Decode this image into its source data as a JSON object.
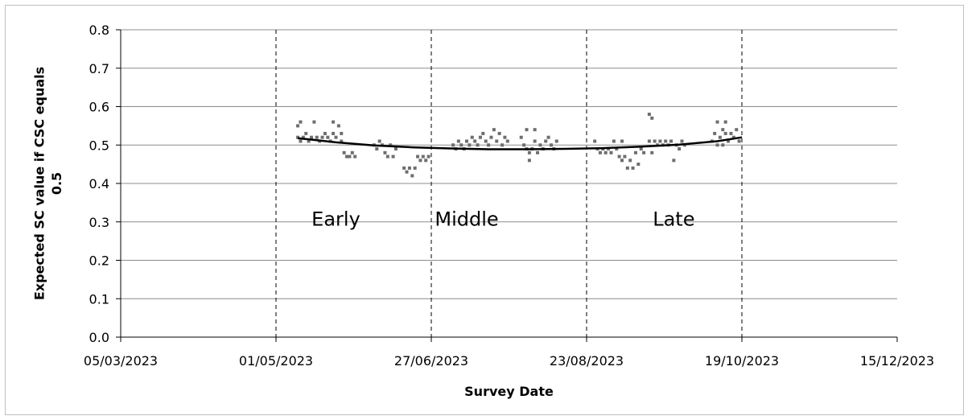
{
  "chart_data": {
    "type": "scatter",
    "title": "",
    "xlabel": "Survey Date",
    "ylabel": "Expected SC value if CSC equals 0.5",
    "xlim": [
      "05/03/2023",
      "15/12/2023"
    ],
    "ylim": [
      0.0,
      0.8
    ],
    "x_ticks": [
      "05/03/2023",
      "01/05/2023",
      "27/06/2023",
      "23/08/2023",
      "19/10/2023",
      "15/12/2023"
    ],
    "y_ticks": [
      "0.0",
      "0.1",
      "0.2",
      "0.3",
      "0.4",
      "0.5",
      "0.6",
      "0.7",
      "0.8"
    ],
    "grid": "horizontal",
    "period_boundaries": [
      "01/05/2023",
      "27/06/2023",
      "23/08/2023",
      "19/10/2023"
    ],
    "period_labels": [
      {
        "text": "Early",
        "date": "23/05/2023",
        "y": 0.29
      },
      {
        "text": "Middle",
        "date": "10/07/2023",
        "y": 0.29
      },
      {
        "text": "Late",
        "date": "24/09/2023",
        "y": 0.29
      }
    ],
    "colors": {
      "points": "#6e6e6e",
      "trend": "#000000",
      "grid": "#8c8c8c"
    },
    "trend_line": {
      "name": "",
      "points": [
        {
          "date": "09/05/2023",
          "y": 0.518
        },
        {
          "date": "23/05/2023",
          "y": 0.507
        },
        {
          "date": "06/06/2023",
          "y": 0.499
        },
        {
          "date": "20/06/2023",
          "y": 0.494
        },
        {
          "date": "04/07/2023",
          "y": 0.491
        },
        {
          "date": "18/07/2023",
          "y": 0.489
        },
        {
          "date": "01/08/2023",
          "y": 0.489
        },
        {
          "date": "15/08/2023",
          "y": 0.49
        },
        {
          "date": "29/08/2023",
          "y": 0.492
        },
        {
          "date": "12/09/2023",
          "y": 0.496
        },
        {
          "date": "26/09/2023",
          "y": 0.501
        },
        {
          "date": "10/10/2023",
          "y": 0.51
        },
        {
          "date": "19/10/2023",
          "y": 0.52
        }
      ]
    },
    "points": [
      {
        "date": "09/05/2023",
        "y": 0.52
      },
      {
        "date": "09/05/2023",
        "y": 0.55
      },
      {
        "date": "10/05/2023",
        "y": 0.51
      },
      {
        "date": "10/05/2023",
        "y": 0.56
      },
      {
        "date": "11/05/2023",
        "y": 0.52
      },
      {
        "date": "12/05/2023",
        "y": 0.53
      },
      {
        "date": "13/05/2023",
        "y": 0.51
      },
      {
        "date": "14/05/2023",
        "y": 0.52
      },
      {
        "date": "15/05/2023",
        "y": 0.56
      },
      {
        "date": "16/05/2023",
        "y": 0.52
      },
      {
        "date": "17/05/2023",
        "y": 0.51
      },
      {
        "date": "18/05/2023",
        "y": 0.52
      },
      {
        "date": "19/05/2023",
        "y": 0.53
      },
      {
        "date": "20/05/2023",
        "y": 0.52
      },
      {
        "date": "21/05/2023",
        "y": 0.51
      },
      {
        "date": "22/05/2023",
        "y": 0.53
      },
      {
        "date": "22/05/2023",
        "y": 0.56
      },
      {
        "date": "23/05/2023",
        "y": 0.52
      },
      {
        "date": "24/05/2023",
        "y": 0.55
      },
      {
        "date": "25/05/2023",
        "y": 0.51
      },
      {
        "date": "25/05/2023",
        "y": 0.53
      },
      {
        "date": "26/05/2023",
        "y": 0.48
      },
      {
        "date": "27/05/2023",
        "y": 0.47
      },
      {
        "date": "28/05/2023",
        "y": 0.47
      },
      {
        "date": "29/05/2023",
        "y": 0.48
      },
      {
        "date": "30/05/2023",
        "y": 0.47
      },
      {
        "date": "06/06/2023",
        "y": 0.5
      },
      {
        "date": "07/06/2023",
        "y": 0.49
      },
      {
        "date": "08/06/2023",
        "y": 0.51
      },
      {
        "date": "09/06/2023",
        "y": 0.5
      },
      {
        "date": "10/06/2023",
        "y": 0.48
      },
      {
        "date": "11/06/2023",
        "y": 0.47
      },
      {
        "date": "12/06/2023",
        "y": 0.5
      },
      {
        "date": "13/06/2023",
        "y": 0.47
      },
      {
        "date": "14/06/2023",
        "y": 0.49
      },
      {
        "date": "17/06/2023",
        "y": 0.44
      },
      {
        "date": "18/06/2023",
        "y": 0.43
      },
      {
        "date": "19/06/2023",
        "y": 0.44
      },
      {
        "date": "20/06/2023",
        "y": 0.42
      },
      {
        "date": "21/06/2023",
        "y": 0.44
      },
      {
        "date": "22/06/2023",
        "y": 0.47
      },
      {
        "date": "23/06/2023",
        "y": 0.46
      },
      {
        "date": "24/06/2023",
        "y": 0.47
      },
      {
        "date": "25/06/2023",
        "y": 0.46
      },
      {
        "date": "26/06/2023",
        "y": 0.47
      },
      {
        "date": "05/07/2023",
        "y": 0.5
      },
      {
        "date": "06/07/2023",
        "y": 0.49
      },
      {
        "date": "07/07/2023",
        "y": 0.51
      },
      {
        "date": "08/07/2023",
        "y": 0.5
      },
      {
        "date": "09/07/2023",
        "y": 0.49
      },
      {
        "date": "10/07/2023",
        "y": 0.51
      },
      {
        "date": "11/07/2023",
        "y": 0.5
      },
      {
        "date": "12/07/2023",
        "y": 0.52
      },
      {
        "date": "13/07/2023",
        "y": 0.51
      },
      {
        "date": "14/07/2023",
        "y": 0.5
      },
      {
        "date": "15/07/2023",
        "y": 0.52
      },
      {
        "date": "16/07/2023",
        "y": 0.53
      },
      {
        "date": "17/07/2023",
        "y": 0.51
      },
      {
        "date": "18/07/2023",
        "y": 0.5
      },
      {
        "date": "19/07/2023",
        "y": 0.52
      },
      {
        "date": "20/07/2023",
        "y": 0.54
      },
      {
        "date": "21/07/2023",
        "y": 0.51
      },
      {
        "date": "22/07/2023",
        "y": 0.53
      },
      {
        "date": "23/07/2023",
        "y": 0.5
      },
      {
        "date": "24/07/2023",
        "y": 0.52
      },
      {
        "date": "25/07/2023",
        "y": 0.51
      },
      {
        "date": "30/07/2023",
        "y": 0.52
      },
      {
        "date": "31/07/2023",
        "y": 0.5
      },
      {
        "date": "01/08/2023",
        "y": 0.49
      },
      {
        "date": "01/08/2023",
        "y": 0.54
      },
      {
        "date": "02/08/2023",
        "y": 0.48
      },
      {
        "date": "02/08/2023",
        "y": 0.46
      },
      {
        "date": "03/08/2023",
        "y": 0.49
      },
      {
        "date": "04/08/2023",
        "y": 0.51
      },
      {
        "date": "04/08/2023",
        "y": 0.54
      },
      {
        "date": "05/08/2023",
        "y": 0.48
      },
      {
        "date": "06/08/2023",
        "y": 0.5
      },
      {
        "date": "07/08/2023",
        "y": 0.49
      },
      {
        "date": "08/08/2023",
        "y": 0.51
      },
      {
        "date": "09/08/2023",
        "y": 0.52
      },
      {
        "date": "10/08/2023",
        "y": 0.5
      },
      {
        "date": "11/08/2023",
        "y": 0.49
      },
      {
        "date": "12/08/2023",
        "y": 0.51
      },
      {
        "date": "26/08/2023",
        "y": 0.51
      },
      {
        "date": "27/08/2023",
        "y": 0.49
      },
      {
        "date": "28/08/2023",
        "y": 0.48
      },
      {
        "date": "29/08/2023",
        "y": 0.49
      },
      {
        "date": "30/08/2023",
        "y": 0.48
      },
      {
        "date": "31/08/2023",
        "y": 0.49
      },
      {
        "date": "01/09/2023",
        "y": 0.48
      },
      {
        "date": "02/09/2023",
        "y": 0.51
      },
      {
        "date": "03/09/2023",
        "y": 0.49
      },
      {
        "date": "04/09/2023",
        "y": 0.47
      },
      {
        "date": "05/09/2023",
        "y": 0.51
      },
      {
        "date": "05/09/2023",
        "y": 0.46
      },
      {
        "date": "06/09/2023",
        "y": 0.47
      },
      {
        "date": "07/09/2023",
        "y": 0.44
      },
      {
        "date": "08/09/2023",
        "y": 0.46
      },
      {
        "date": "09/09/2023",
        "y": 0.44
      },
      {
        "date": "10/09/2023",
        "y": 0.48
      },
      {
        "date": "11/09/2023",
        "y": 0.45
      },
      {
        "date": "12/09/2023",
        "y": 0.49
      },
      {
        "date": "13/09/2023",
        "y": 0.48
      },
      {
        "date": "15/09/2023",
        "y": 0.51
      },
      {
        "date": "15/09/2023",
        "y": 0.58
      },
      {
        "date": "16/09/2023",
        "y": 0.48
      },
      {
        "date": "16/09/2023",
        "y": 0.57
      },
      {
        "date": "17/09/2023",
        "y": 0.51
      },
      {
        "date": "18/09/2023",
        "y": 0.5
      },
      {
        "date": "19/09/2023",
        "y": 0.51
      },
      {
        "date": "20/09/2023",
        "y": 0.5
      },
      {
        "date": "21/09/2023",
        "y": 0.51
      },
      {
        "date": "22/09/2023",
        "y": 0.5
      },
      {
        "date": "23/09/2023",
        "y": 0.51
      },
      {
        "date": "24/09/2023",
        "y": 0.46
      },
      {
        "date": "25/09/2023",
        "y": 0.5
      },
      {
        "date": "26/09/2023",
        "y": 0.49
      },
      {
        "date": "27/09/2023",
        "y": 0.51
      },
      {
        "date": "28/09/2023",
        "y": 0.5
      },
      {
        "date": "08/10/2023",
        "y": 0.51
      },
      {
        "date": "09/10/2023",
        "y": 0.53
      },
      {
        "date": "10/10/2023",
        "y": 0.5
      },
      {
        "date": "10/10/2023",
        "y": 0.56
      },
      {
        "date": "11/10/2023",
        "y": 0.52
      },
      {
        "date": "12/10/2023",
        "y": 0.54
      },
      {
        "date": "12/10/2023",
        "y": 0.5
      },
      {
        "date": "13/10/2023",
        "y": 0.53
      },
      {
        "date": "13/10/2023",
        "y": 0.56
      },
      {
        "date": "14/10/2023",
        "y": 0.51
      },
      {
        "date": "15/10/2023",
        "y": 0.53
      },
      {
        "date": "16/10/2023",
        "y": 0.52
      },
      {
        "date": "17/10/2023",
        "y": 0.54
      },
      {
        "date": "18/10/2023",
        "y": 0.51
      }
    ]
  }
}
